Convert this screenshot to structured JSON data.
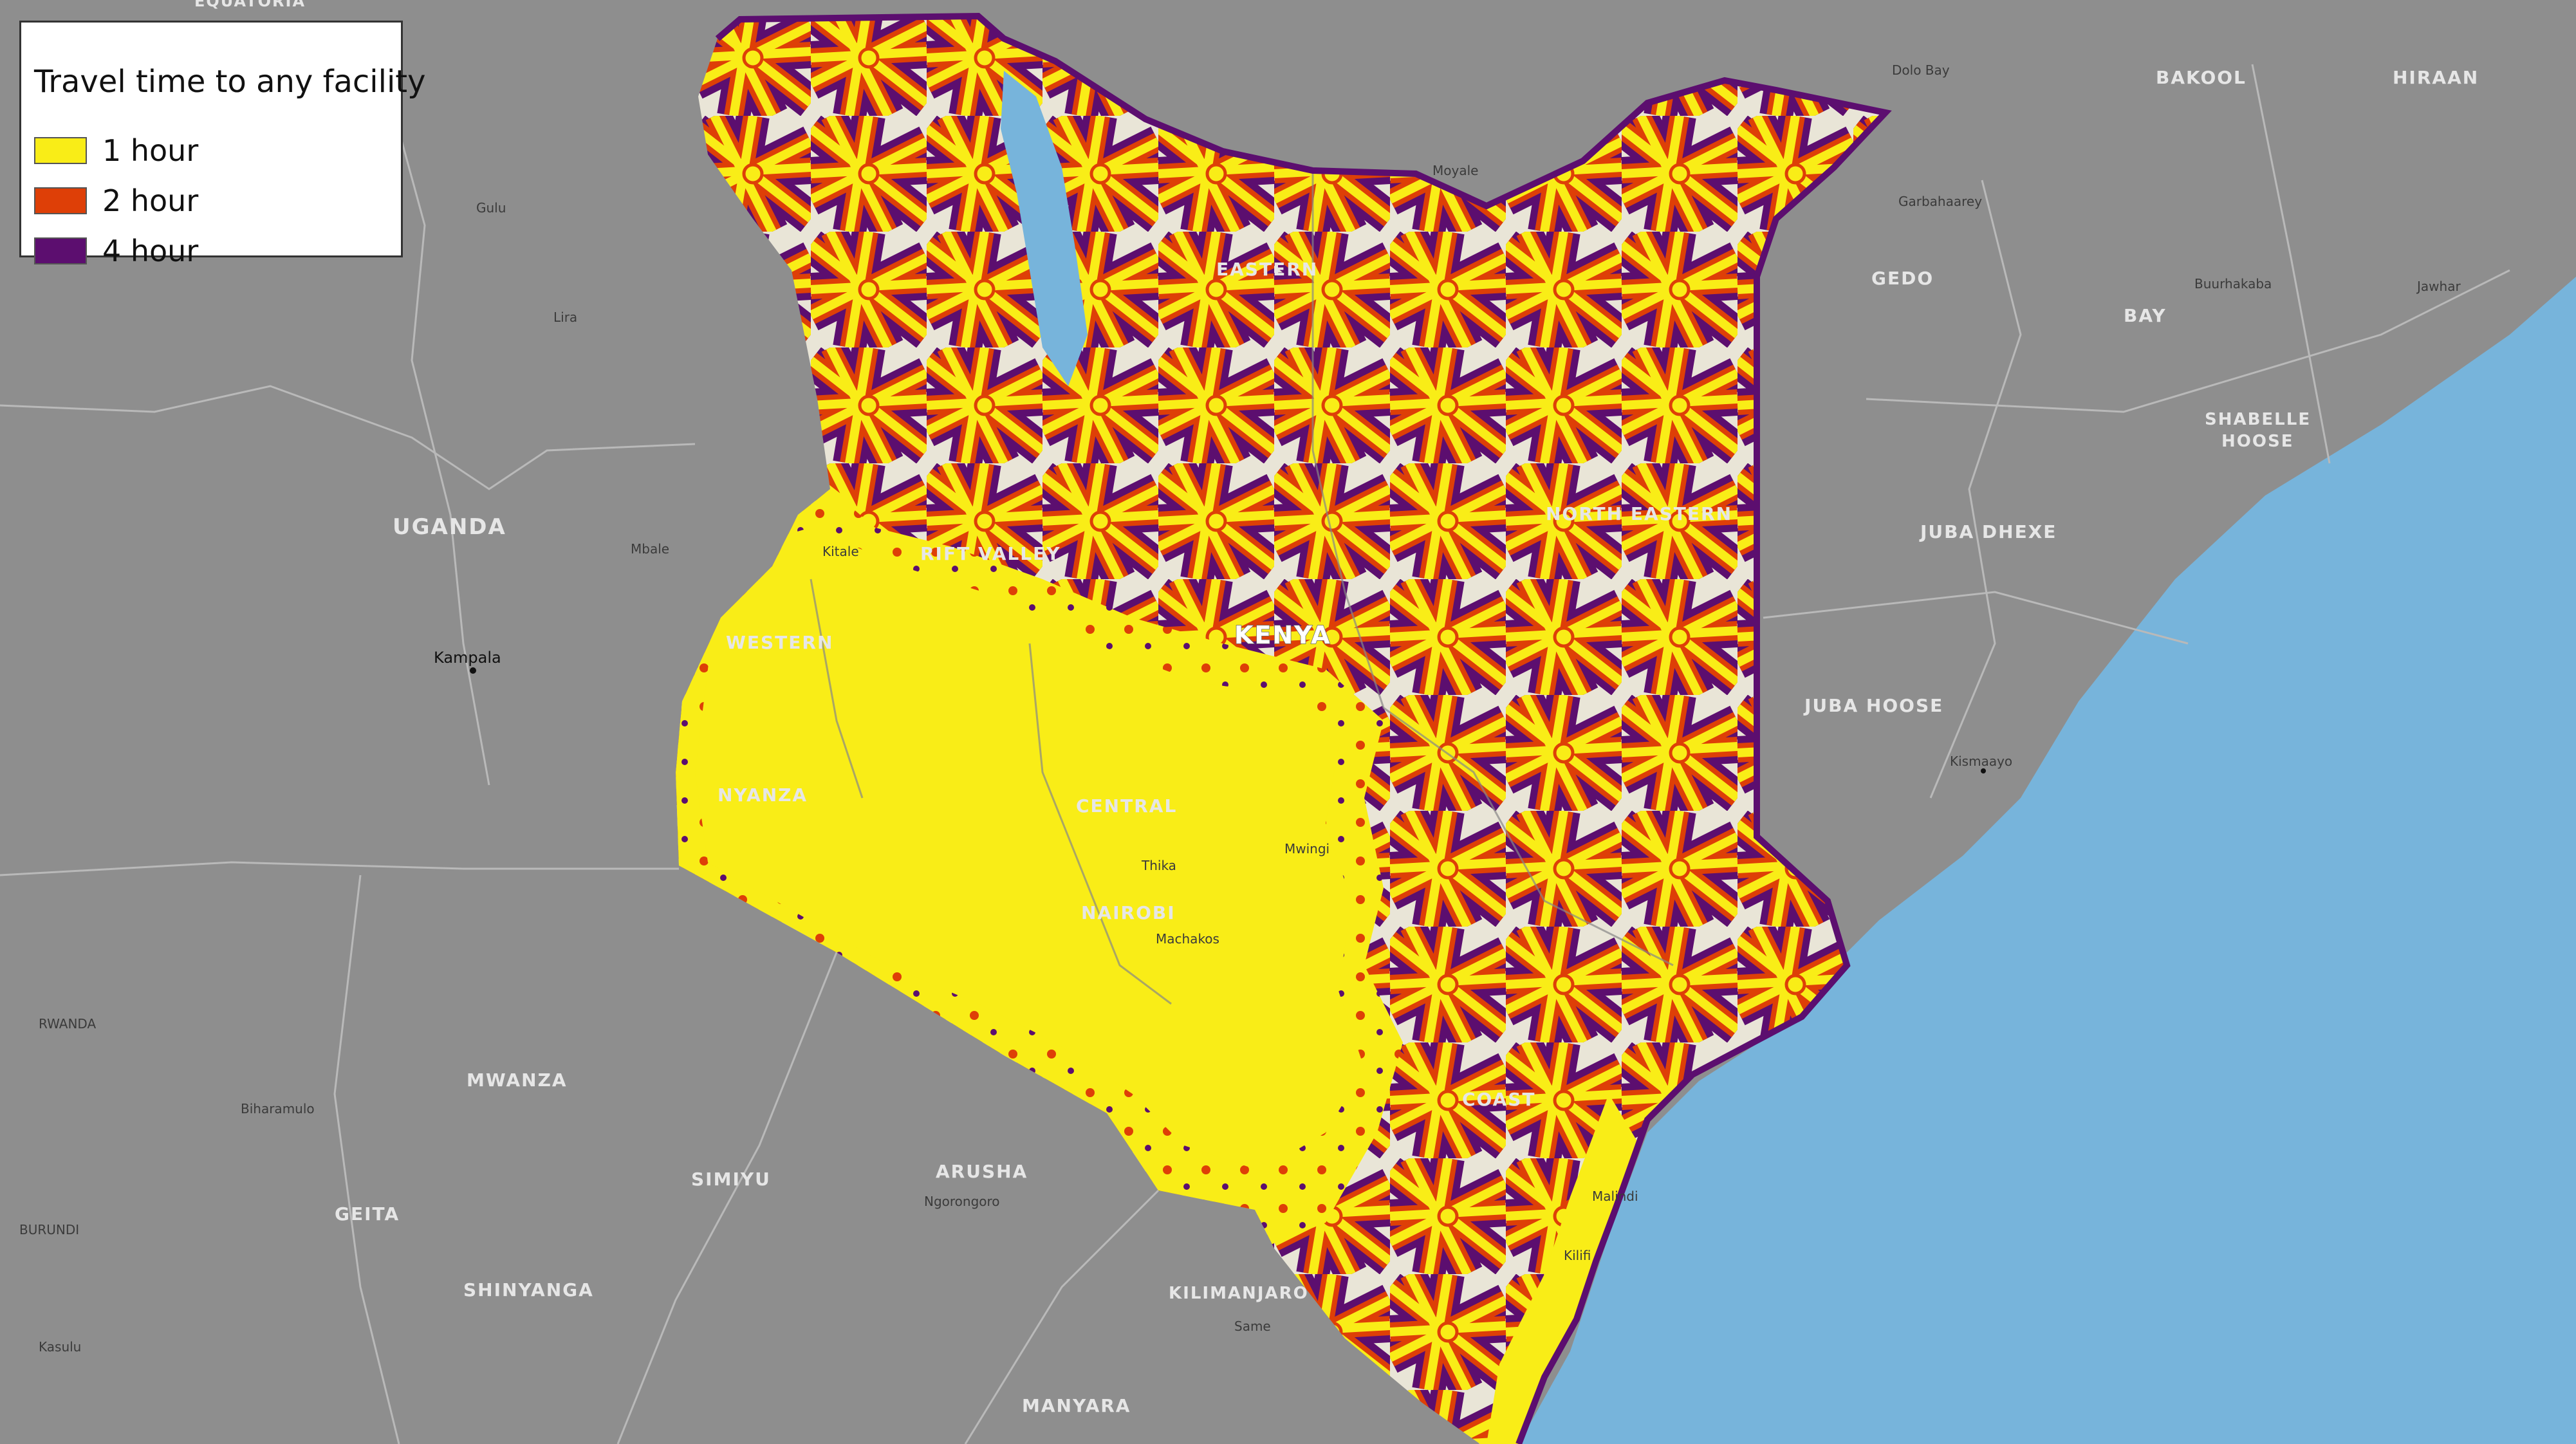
{
  "legend": {
    "title": "Travel time to any facility",
    "items": [
      {
        "label": "1 hour",
        "color": "#f9ed17"
      },
      {
        "label": "2 hour",
        "color": "#de3f07"
      },
      {
        "label": "4 hour",
        "color": "#5c0e6f"
      }
    ]
  },
  "colors": {
    "background_land": "#8e8e8e",
    "ocean": "#77b4db",
    "kenya_base": "#e9e5d7",
    "road_1h": "#f9ed17",
    "road_2h": "#de3f07",
    "road_4h": "#5c0e6f"
  },
  "regions": {
    "rift_valley": "RIFT VALLEY",
    "western": "WESTERN",
    "nyanza": "NYANZA",
    "central": "CENTRAL",
    "nairobi": "NAIROBI",
    "eastern": "EASTERN",
    "north_eastern": "NORTH EASTERN",
    "coast": "COAST",
    "kenya": "KENYA"
  },
  "neighbors": {
    "equatoria": "EQUATORIA",
    "uganda": "UGANDA",
    "bakool": "BAKOOL",
    "hiraan": "HIRAAN",
    "gedo": "GEDO",
    "bay": "BAY",
    "shabelle_hoose_1": "SHABELLE",
    "shabelle_hoose_2": "HOOSE",
    "juba_dhexe": "JUBA DHEXE",
    "juba_hoose": "JUBA HOOSE",
    "mwanza": "MWANZA",
    "simiyu": "SIMIYU",
    "arusha": "ARUSHA",
    "geita": "GEITA",
    "shinyanga": "SHINYANGA",
    "kilimanjaro": "KILIMANJARO",
    "manyara": "MANYARA",
    "rwanda": "RWANDA",
    "burundi": "BURUNDI"
  },
  "places": {
    "kampala": "Kampala",
    "kismaayo": "Kismaayo",
    "jawhar": "Jawhar",
    "kitale": "Kitale",
    "machakos": "Machakos",
    "thika": "Thika",
    "mwingi": "Mwingi",
    "malindi": "Malindi",
    "kilifi": "Kilifi",
    "moyale": "Moyale",
    "garbahaarey": "Garbahaarey",
    "buurhakaba": "Buurhakaba",
    "dolo_bay": "Dolo Bay",
    "ngorongoro": "Ngorongoro",
    "same": "Same",
    "kasulu": "Kasulu",
    "biharamulo": "Biharamulo",
    "mbale": "Mbale",
    "gulu": "Gulu",
    "lira": "Lira"
  }
}
